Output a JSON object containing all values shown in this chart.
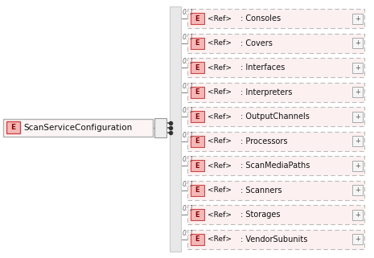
{
  "background_color": "#ffffff",
  "main_element": {
    "label": "ScanServiceConfiguration",
    "e_fill": "#f4b8b8",
    "e_edge": "#cc4444",
    "box_fill": "#fdf5f5",
    "box_edge": "#b0b0b0"
  },
  "children": [
    ": Consoles",
    ": Covers",
    ": Interfaces",
    ": Interpreters",
    ": OutputChannels",
    ": Processors",
    ": ScanMediaPaths",
    ": Scanners",
    ": Storages",
    ": VendorSubunits"
  ],
  "child_fill": "#fdf0f0",
  "child_edge": "#bbbbbb",
  "child_e_fill": "#f4b8b8",
  "child_e_edge": "#cc4444",
  "line_color": "#888888",
  "vbar_fill": "#e8e8e8",
  "vbar_edge": "#cccccc",
  "mult_color": "#666666",
  "text_color": "#111111",
  "plus_fill": "#f5f5f5",
  "plus_edge": "#aaaaaa"
}
